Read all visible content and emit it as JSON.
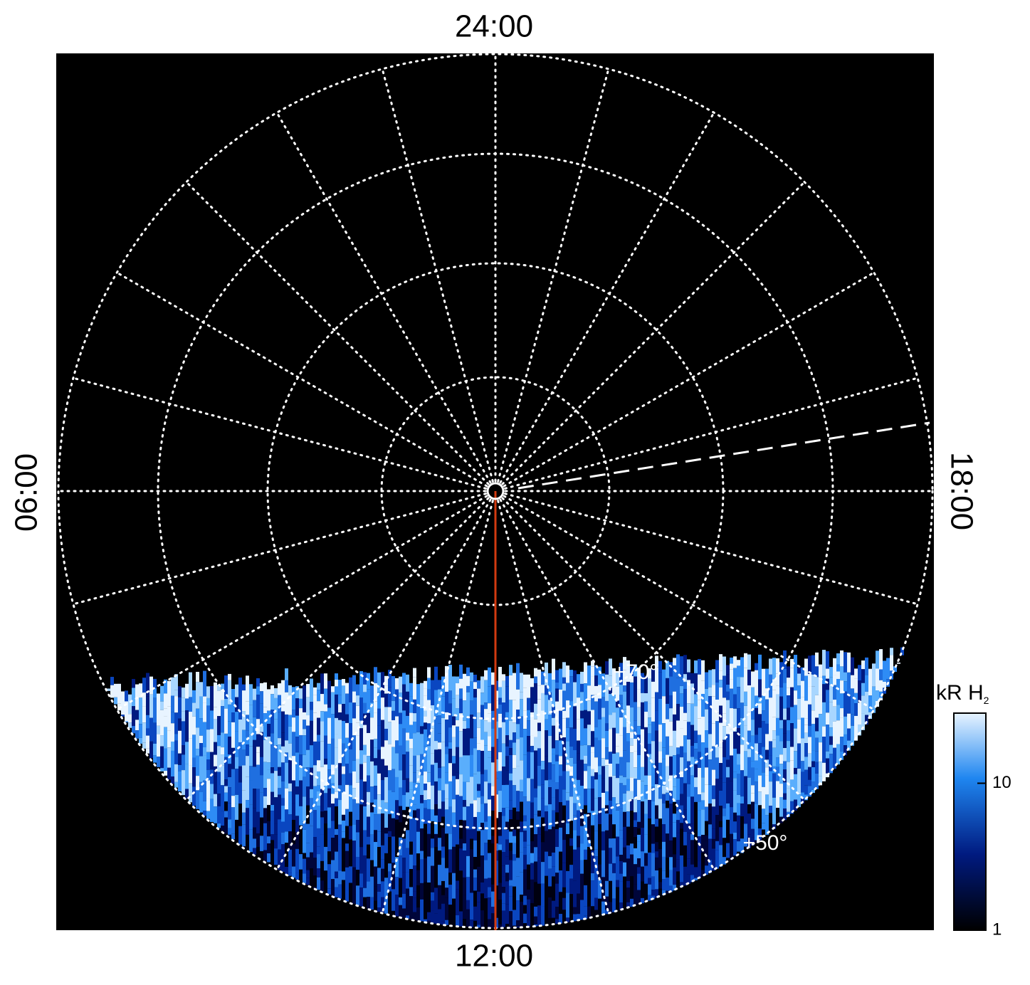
{
  "figure": {
    "time_labels": {
      "top": "24:00",
      "bottom": "12:00",
      "left": "06:00",
      "right": "18:00"
    },
    "latitude_labels": [
      "+70°",
      "+50°"
    ],
    "colorbar": {
      "title": "kR H",
      "title_subscript": "2",
      "log": true,
      "lim": [
        1,
        30
      ],
      "ticks": [
        1,
        10
      ]
    }
  }
}
